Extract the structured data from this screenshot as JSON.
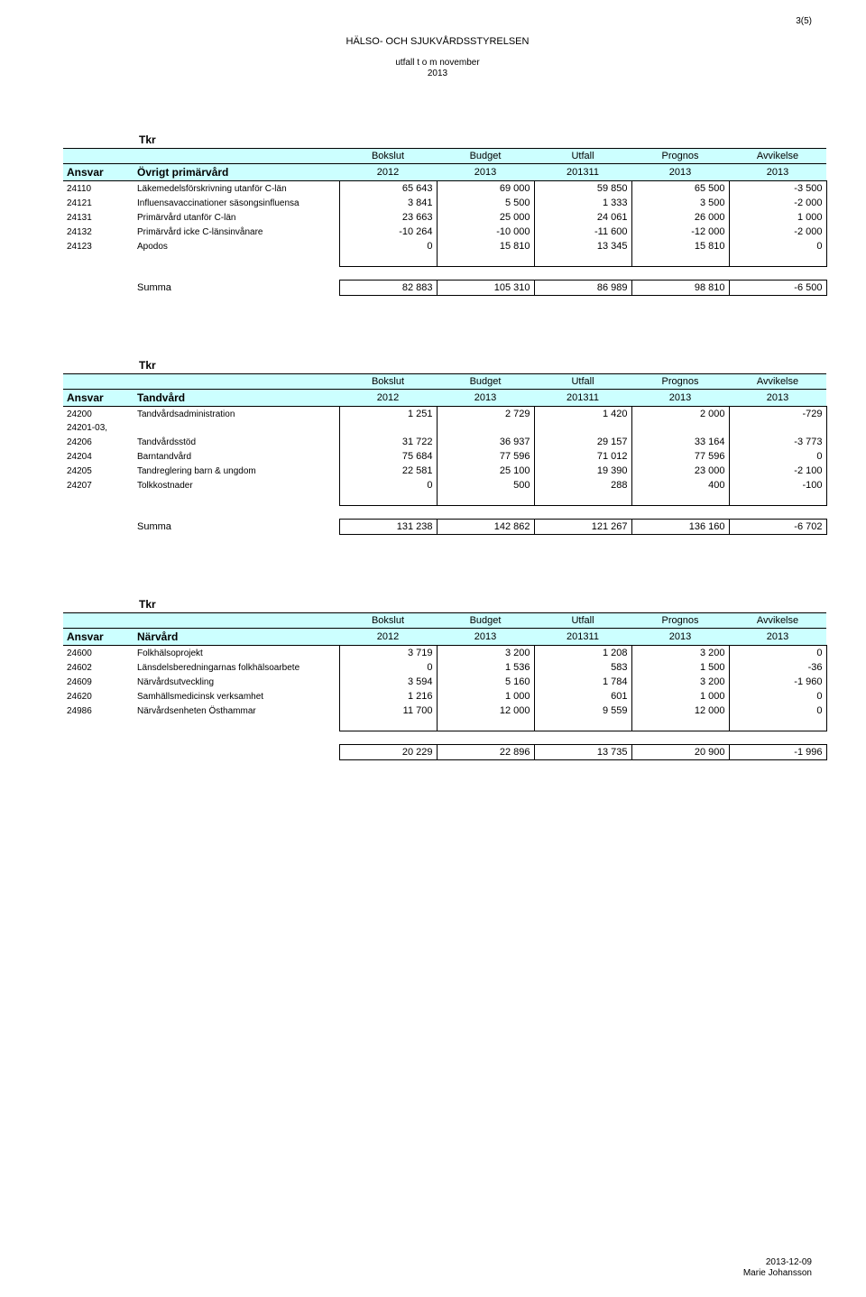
{
  "page_number": "3(5)",
  "header": {
    "org": "HÄLSO- OCH SJUKVÅRDSSTYRELSEN",
    "subtitle_line1": "utfall t o m november",
    "subtitle_line2": "2013"
  },
  "labels": {
    "tkr": "Tkr",
    "ansvar": "Ansvar",
    "summa": "Summa"
  },
  "columns": {
    "c1_top": "Bokslut",
    "c1_bot": "2012",
    "c2_top": "Budget",
    "c2_bot": "2013",
    "c3_top": "Utfall",
    "c3_bot": "201311",
    "c4_top": "Prognos",
    "c4_bot": "2013",
    "c5_top": "Avvikelse",
    "c5_bot": "2013"
  },
  "tables": [
    {
      "title": "Övrigt primärvård",
      "rows": [
        {
          "code": "24110",
          "label": "Läkemedelsförskrivning utanför C-län",
          "v": [
            "65 643",
            "69 000",
            "59 850",
            "65 500",
            "-3 500"
          ]
        },
        {
          "code": "24121",
          "label": "Influensavaccinationer säsongsinfluensa",
          "v": [
            "3 841",
            "5 500",
            "1 333",
            "3 500",
            "-2 000"
          ]
        },
        {
          "code": "24131",
          "label": "Primärvård utanför C-län",
          "v": [
            "23 663",
            "25 000",
            "24 061",
            "26 000",
            "1 000"
          ]
        },
        {
          "code": "24132",
          "label": "Primärvård icke C-länsinvånare",
          "v": [
            "-10 264",
            "-10 000",
            "-11 600",
            "-12 000",
            "-2 000"
          ]
        },
        {
          "code": "24123",
          "label": "Apodos",
          "v": [
            "0",
            "15 810",
            "13 345",
            "15 810",
            "0"
          ]
        }
      ],
      "sum": [
        "82 883",
        "105 310",
        "86 989",
        "98 810",
        "-6 500"
      ],
      "show_summa_label": true
    },
    {
      "title": "Tandvård",
      "rows": [
        {
          "code": "24200",
          "label": "Tandvårdsadministration",
          "v": [
            "1 251",
            "2 729",
            "1 420",
            "2 000",
            "-729"
          ]
        },
        {
          "code": "24201-03,\n24206",
          "label": "Tandvårdsstöd",
          "v": [
            "31 722",
            "36 937",
            "29 157",
            "33 164",
            "-3 773"
          ]
        },
        {
          "code": "24204",
          "label": "Barntandvård",
          "v": [
            "75 684",
            "77 596",
            "71 012",
            "77 596",
            "0"
          ]
        },
        {
          "code": "24205",
          "label": "Tandreglering barn & ungdom",
          "v": [
            "22 581",
            "25 100",
            "19 390",
            "23 000",
            "-2 100"
          ]
        },
        {
          "code": "24207",
          "label": "Tolkkostnader",
          "v": [
            "0",
            "500",
            "288",
            "400",
            "-100"
          ]
        }
      ],
      "sum": [
        "131 238",
        "142 862",
        "121 267",
        "136 160",
        "-6 702"
      ],
      "show_summa_label": true
    },
    {
      "title": "Närvård",
      "rows": [
        {
          "code": "24600",
          "label": "Folkhälsoprojekt",
          "v": [
            "3 719",
            "3 200",
            "1 208",
            "3 200",
            "0"
          ]
        },
        {
          "code": "24602",
          "label": "Länsdelsberedningarnas folkhälsoarbete",
          "v": [
            "0",
            "1 536",
            "583",
            "1 500",
            "-36"
          ]
        },
        {
          "code": "24609",
          "label": "Närvårdsutveckling",
          "v": [
            "3 594",
            "5 160",
            "1 784",
            "3 200",
            "-1 960"
          ]
        },
        {
          "code": "24620",
          "label": "Samhällsmedicinsk verksamhet",
          "v": [
            "1 216",
            "1 000",
            "601",
            "1 000",
            "0"
          ]
        },
        {
          "code": "24986",
          "label": "Närvårdsenheten Östhammar",
          "v": [
            "11 700",
            "12 000",
            "9 559",
            "12 000",
            "0"
          ]
        }
      ],
      "sum": [
        "20 229",
        "22 896",
        "13 735",
        "20 900",
        "-1 996"
      ],
      "show_summa_label": false
    }
  ],
  "footer": {
    "date": "2013-12-09",
    "author": "Marie Johansson"
  },
  "colors": {
    "header_bg": "#ccffff",
    "border": "#000000",
    "text": "#000000",
    "background": "#ffffff"
  }
}
